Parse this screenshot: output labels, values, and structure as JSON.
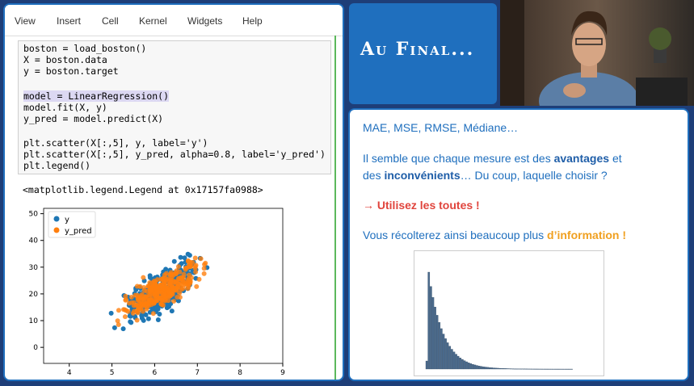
{
  "menubar": {
    "items": [
      "View",
      "Insert",
      "Cell",
      "Kernel",
      "Widgets",
      "Help"
    ]
  },
  "code_cell": {
    "lines": [
      "boston = load_boston()",
      "X = boston.data",
      "y = boston.target",
      "",
      "model = LinearRegression()",
      "model.fit(X, y)",
      "y_pred = model.predict(X)",
      "",
      "plt.scatter(X[:,5], y, label='y')",
      "plt.scatter(X[:,5], y_pred, alpha=0.8, label='y_pred')",
      "plt.legend()"
    ]
  },
  "output": {
    "text": "<matplotlib.legend.Legend at 0x17157fa0988>"
  },
  "chart_data": {
    "type": "scatter",
    "xticks": [
      "4",
      "5",
      "6",
      "7",
      "8",
      "9"
    ],
    "yticks": [
      "0",
      "10",
      "20",
      "30",
      "40",
      "50"
    ],
    "xlim": [
      3.4,
      9.0
    ],
    "ylim": [
      -6,
      52
    ],
    "legend_position": "top-left",
    "series": [
      {
        "name": "y",
        "color": "#1f77b4"
      },
      {
        "name": "y_pred",
        "color": "#ff7f0e"
      }
    ]
  },
  "title_box": {
    "text": "Au Final..."
  },
  "right_panel": {
    "line1": "MAE, MSE, RMSE, Médiane…",
    "line2_a": "Il semble que chaque mesure est des ",
    "line2_b": "avantages",
    "line2_c": " et",
    "line3_a": "des ",
    "line3_b": "inconvénients",
    "line3_c": "… Du coup, laquelle choisir ?",
    "line4": "→ Utilisez les toutes !",
    "line5_a": "Vous récolterez ainsi beaucoup plus ",
    "line5_b": "d’information !"
  },
  "colors": {
    "accent": "#1f6fbe",
    "background": "#1e3e78",
    "red": "#e0443c",
    "orange": "#f0a020"
  },
  "histogram": {
    "color": "#4a6a8c"
  }
}
